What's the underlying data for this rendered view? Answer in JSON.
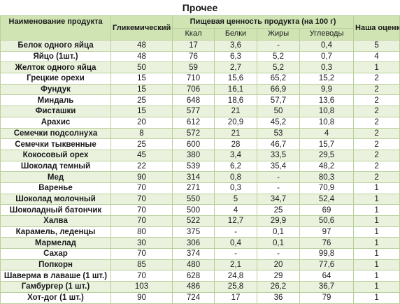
{
  "title": "Прочее",
  "headers": {
    "name": "Наименование продукта",
    "gi": "Гликемический индекс",
    "nutrition_group": "Пищевая ценность продукта (на 100 г)",
    "kcal": "Ккал",
    "protein": "Белки",
    "fat": "Жиры",
    "carbs": "Углеводы",
    "rating": "Наша оценка"
  },
  "rows": [
    {
      "name": "Белок одного яйца",
      "gi": "48",
      "kcal": "17",
      "protein": "3,6",
      "fat": "-",
      "carbs": "0,4",
      "rating": "5"
    },
    {
      "name": "Яйцо (1шт.)",
      "gi": "48",
      "kcal": "76",
      "protein": "6,3",
      "fat": "5,2",
      "carbs": "0,7",
      "rating": "4"
    },
    {
      "name": "Желток одного яйца",
      "gi": "50",
      "kcal": "59",
      "protein": "2,7",
      "fat": "5,2",
      "carbs": "0,3",
      "rating": "1"
    },
    {
      "name": "Грецкие орехи",
      "gi": "15",
      "kcal": "710",
      "protein": "15,6",
      "fat": "65,2",
      "carbs": "15,2",
      "rating": "2"
    },
    {
      "name": "Фундук",
      "gi": "15",
      "kcal": "706",
      "protein": "16,1",
      "fat": "66,9",
      "carbs": "9,9",
      "rating": "2"
    },
    {
      "name": "Миндаль",
      "gi": "25",
      "kcal": "648",
      "protein": "18,6",
      "fat": "57,7",
      "carbs": "13,6",
      "rating": "2"
    },
    {
      "name": "Фисташки",
      "gi": "15",
      "kcal": "577",
      "protein": "21",
      "fat": "50",
      "carbs": "10,8",
      "rating": "2"
    },
    {
      "name": "Арахис",
      "gi": "20",
      "kcal": "612",
      "protein": "20,9",
      "fat": "45,2",
      "carbs": "10,8",
      "rating": "2"
    },
    {
      "name": "Семечки подсолнуха",
      "gi": "8",
      "kcal": "572",
      "protein": "21",
      "fat": "53",
      "carbs": "4",
      "rating": "2"
    },
    {
      "name": "Семечки тыквенные",
      "gi": "25",
      "kcal": "600",
      "protein": "28",
      "fat": "46,7",
      "carbs": "15,7",
      "rating": "2"
    },
    {
      "name": "Кокосовый орех",
      "gi": "45",
      "kcal": "380",
      "protein": "3,4",
      "fat": "33,5",
      "carbs": "29,5",
      "rating": "2"
    },
    {
      "name": "Шоколад темный",
      "gi": "22",
      "kcal": "539",
      "protein": "6,2",
      "fat": "35,4",
      "carbs": "48,2",
      "rating": "2"
    },
    {
      "name": "Мед",
      "gi": "90",
      "kcal": "314",
      "protein": "0,8",
      "fat": "-",
      "carbs": "80,3",
      "rating": "2"
    },
    {
      "name": "Варенье",
      "gi": "70",
      "kcal": "271",
      "protein": "0,3",
      "fat": "-",
      "carbs": "70,9",
      "rating": "1"
    },
    {
      "name": "Шоколад молочный",
      "gi": "70",
      "kcal": "550",
      "protein": "5",
      "fat": "34,7",
      "carbs": "52,4",
      "rating": "1"
    },
    {
      "name": "Шоколадный батончик",
      "gi": "70",
      "kcal": "500",
      "protein": "4",
      "fat": "25",
      "carbs": "69",
      "rating": "1"
    },
    {
      "name": "Халва",
      "gi": "70",
      "kcal": "522",
      "protein": "12,7",
      "fat": "29,9",
      "carbs": "50,6",
      "rating": "1"
    },
    {
      "name": "Карамель, леденцы",
      "gi": "80",
      "kcal": "375",
      "protein": "-",
      "fat": "0,1",
      "carbs": "97",
      "rating": "1"
    },
    {
      "name": "Мармелад",
      "gi": "30",
      "kcal": "306",
      "protein": "0,4",
      "fat": "0,1",
      "carbs": "76",
      "rating": "1"
    },
    {
      "name": "Сахар",
      "gi": "70",
      "kcal": "374",
      "protein": "-",
      "fat": "-",
      "carbs": "99,8",
      "rating": "1"
    },
    {
      "name": "Попкорн",
      "gi": "85",
      "kcal": "480",
      "protein": "2,1",
      "fat": "20",
      "carbs": "77,6",
      "rating": "1"
    },
    {
      "name": "Шаверма в лаваше (1 шт.)",
      "gi": "70",
      "kcal": "628",
      "protein": "24,8",
      "fat": "29",
      "carbs": "64",
      "rating": "1"
    },
    {
      "name": "Гамбургер (1 шт.)",
      "gi": "103",
      "kcal": "486",
      "protein": "25,8",
      "fat": "26,2",
      "carbs": "36,7",
      "rating": "1"
    },
    {
      "name": "Хот-дог (1 шт.)",
      "gi": "90",
      "kcal": "724",
      "protein": "17",
      "fat": "36",
      "carbs": "79",
      "rating": "1"
    }
  ]
}
